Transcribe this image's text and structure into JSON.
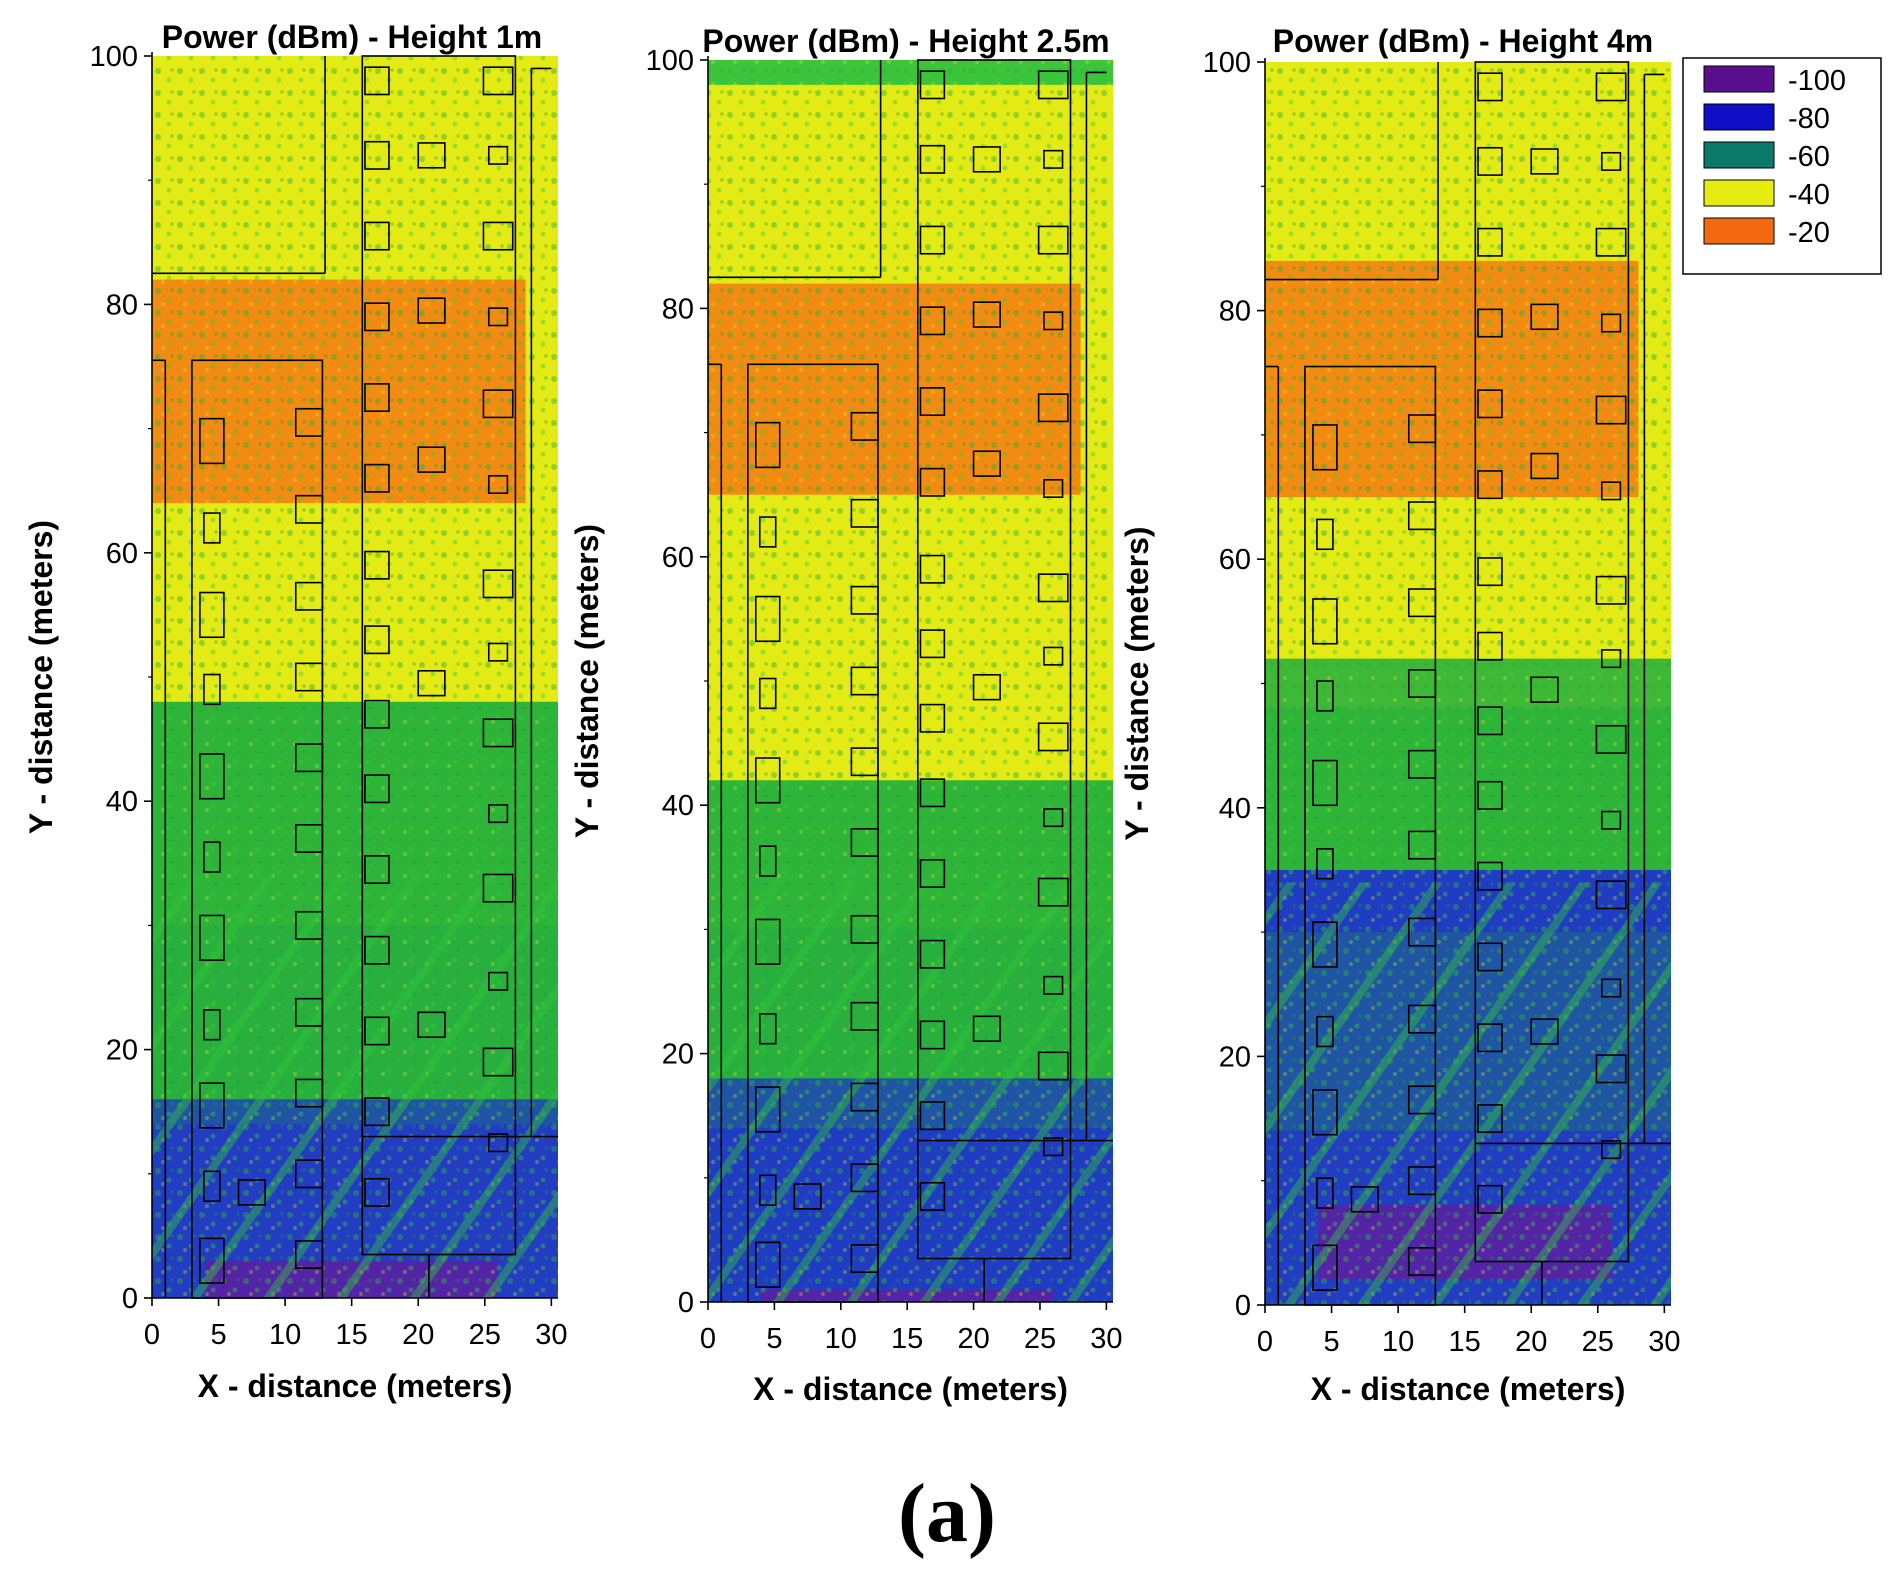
{
  "chart_data": {
    "type": "heatmap",
    "legend": {
      "position": "top-right",
      "items": [
        {
          "label": "-100",
          "color": "#5b0f8f"
        },
        {
          "label": "-80",
          "color": "#1010c8"
        },
        {
          "label": "-60",
          "color": "#0c7a6a"
        },
        {
          "label": "-40",
          "color": "#e6ec10"
        },
        {
          "label": "-20",
          "color": "#f26a10"
        }
      ]
    },
    "panels": [
      {
        "title": "Power (dBm) - Height 1m",
        "xlabel": "X - distance (meters)",
        "ylabel": "Y - distance (meters)",
        "xlim": [
          0,
          30.5
        ],
        "ylim": [
          0,
          100
        ],
        "xticks": [
          "0",
          "5",
          "10",
          "15",
          "20",
          "25",
          "30"
        ],
        "yticks": [
          "0",
          "20",
          "40",
          "60",
          "80",
          "100"
        ],
        "power_bands": [
          {
            "level": "-20",
            "y_from": 64,
            "y_to": 82
          },
          {
            "level": "-40",
            "y_from": 48,
            "y_to": 100
          },
          {
            "level": "-60",
            "y_from": 16,
            "y_to": 48
          },
          {
            "level": "-80",
            "y_from": 0,
            "y_to": 16
          },
          {
            "level": "-100",
            "y_from": 0,
            "y_to": 3
          }
        ]
      },
      {
        "title": "Power (dBm) - Height 2.5m",
        "xlabel": "X - distance (meters)",
        "ylabel": "Y - distance (meters)",
        "xlim": [
          0,
          30.5
        ],
        "ylim": [
          0,
          100
        ],
        "xticks": [
          "0",
          "5",
          "10",
          "15",
          "20",
          "25",
          "30"
        ],
        "yticks": [
          "0",
          "20",
          "40",
          "60",
          "80",
          "100"
        ],
        "power_bands": [
          {
            "level": "-20",
            "y_from": 65,
            "y_to": 82
          },
          {
            "level": "-40",
            "y_from": 42,
            "y_to": 98
          },
          {
            "level": "-60",
            "y_from": 0,
            "y_to": 42
          },
          {
            "level": "-80",
            "y_from": 0,
            "y_to": 18
          },
          {
            "level": "-100",
            "y_from": 0,
            "y_to": 1
          }
        ]
      },
      {
        "title": "Power (dBm) - Height 4m",
        "xlabel": "X - distance (meters)",
        "ylabel": "Y - distance (meters)",
        "xlim": [
          0,
          30.5
        ],
        "ylim": [
          0,
          100
        ],
        "xticks": [
          "0",
          "5",
          "10",
          "15",
          "20",
          "25",
          "30"
        ],
        "yticks": [
          "0",
          "20",
          "40",
          "60",
          "80",
          "100"
        ],
        "power_bands": [
          {
            "level": "-20",
            "y_from": 65,
            "y_to": 84
          },
          {
            "level": "-40",
            "y_from": 48,
            "y_to": 100
          },
          {
            "level": "-60",
            "y_from": 30,
            "y_to": 52
          },
          {
            "level": "-80",
            "y_from": 0,
            "y_to": 35
          },
          {
            "level": "-100",
            "y_from": 2,
            "y_to": 8
          }
        ]
      }
    ]
  },
  "figure_label": "(a)"
}
